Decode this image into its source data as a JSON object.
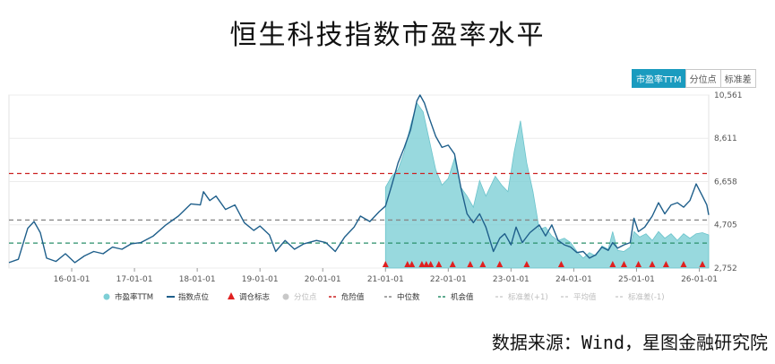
{
  "title": "恒生科技指数市盈率水平",
  "tabs": [
    {
      "label": "市盈率TTM",
      "active": true
    },
    {
      "label": "分位点",
      "active": false
    },
    {
      "label": "标准差",
      "active": false
    }
  ],
  "source": "数据来源：Wind，星图金融研究院",
  "colors": {
    "pe_fill": "#7ecfd6",
    "index_line": "#1f5f8b",
    "danger": "#cc2222",
    "median": "#888888",
    "opportunity": "#2a8f6a",
    "marker": "#e02020"
  },
  "chart_data": {
    "type": "area",
    "y_ticks": [
      "10,561",
      "8,611",
      "6,658",
      "4,705",
      "2,752"
    ],
    "ylim": [
      2752,
      10561
    ],
    "x_ticks": [
      "16-01-01",
      "17-01-01",
      "18-01-01",
      "19-01-01",
      "20-01-01",
      "21-01-01",
      "22-01-01",
      "23-01-01",
      "24-01-01",
      "25-01-01",
      "26-01-01"
    ],
    "xlim": [
      2015.0,
      2026.15
    ],
    "reference_lines": [
      {
        "name": "危险值",
        "value": 7020,
        "color": "#cc2222"
      },
      {
        "name": "中位数",
        "value": 4920,
        "color": "#888888"
      },
      {
        "name": "机会值",
        "value": 3880,
        "color": "#2a8f6a"
      }
    ],
    "series": [
      {
        "name": "指数点位",
        "kind": "line",
        "points": [
          [
            2015.0,
            3000
          ],
          [
            2015.15,
            3150
          ],
          [
            2015.3,
            4550
          ],
          [
            2015.4,
            4850
          ],
          [
            2015.5,
            4350
          ],
          [
            2015.6,
            3200
          ],
          [
            2015.75,
            3050
          ],
          [
            2015.9,
            3400
          ],
          [
            2016.05,
            3000
          ],
          [
            2016.2,
            3300
          ],
          [
            2016.35,
            3500
          ],
          [
            2016.5,
            3400
          ],
          [
            2016.65,
            3700
          ],
          [
            2016.8,
            3600
          ],
          [
            2016.95,
            3850
          ],
          [
            2017.1,
            3900
          ],
          [
            2017.3,
            4200
          ],
          [
            2017.5,
            4700
          ],
          [
            2017.7,
            5100
          ],
          [
            2017.9,
            5650
          ],
          [
            2018.05,
            5600
          ],
          [
            2018.1,
            6200
          ],
          [
            2018.2,
            5800
          ],
          [
            2018.3,
            6000
          ],
          [
            2018.45,
            5400
          ],
          [
            2018.6,
            5600
          ],
          [
            2018.75,
            4800
          ],
          [
            2018.9,
            4450
          ],
          [
            2019.0,
            4650
          ],
          [
            2019.15,
            4250
          ],
          [
            2019.25,
            3500
          ],
          [
            2019.4,
            4000
          ],
          [
            2019.55,
            3600
          ],
          [
            2019.7,
            3850
          ],
          [
            2019.9,
            4000
          ],
          [
            2020.05,
            3900
          ],
          [
            2020.2,
            3500
          ],
          [
            2020.35,
            4150
          ],
          [
            2020.5,
            4600
          ],
          [
            2020.6,
            5100
          ],
          [
            2020.75,
            4850
          ],
          [
            2020.9,
            5300
          ],
          [
            2021.0,
            5550
          ],
          [
            2021.1,
            6500
          ],
          [
            2021.2,
            7500
          ],
          [
            2021.3,
            8200
          ],
          [
            2021.4,
            9000
          ],
          [
            2021.5,
            10300
          ],
          [
            2021.55,
            10561
          ],
          [
            2021.62,
            10200
          ],
          [
            2021.7,
            9500
          ],
          [
            2021.8,
            8700
          ],
          [
            2021.9,
            8200
          ],
          [
            2022.0,
            8300
          ],
          [
            2022.1,
            7900
          ],
          [
            2022.2,
            6400
          ],
          [
            2022.3,
            5200
          ],
          [
            2022.4,
            4800
          ],
          [
            2022.5,
            5200
          ],
          [
            2022.6,
            4600
          ],
          [
            2022.72,
            3500
          ],
          [
            2022.82,
            4100
          ],
          [
            2022.9,
            4300
          ],
          [
            2023.0,
            3800
          ],
          [
            2023.08,
            4600
          ],
          [
            2023.18,
            3900
          ],
          [
            2023.3,
            4350
          ],
          [
            2023.45,
            4700
          ],
          [
            2023.55,
            4200
          ],
          [
            2023.65,
            4700
          ],
          [
            2023.75,
            4000
          ],
          [
            2023.85,
            3800
          ],
          [
            2023.95,
            3700
          ],
          [
            2024.05,
            3450
          ],
          [
            2024.15,
            3500
          ],
          [
            2024.25,
            3200
          ],
          [
            2024.35,
            3350
          ],
          [
            2024.45,
            3700
          ],
          [
            2024.55,
            3550
          ],
          [
            2024.62,
            3900
          ],
          [
            2024.7,
            3650
          ],
          [
            2024.8,
            3800
          ],
          [
            2024.9,
            3900
          ],
          [
            2024.96,
            5000
          ],
          [
            2025.03,
            4400
          ],
          [
            2025.13,
            4600
          ],
          [
            2025.25,
            5100
          ],
          [
            2025.35,
            5700
          ],
          [
            2025.45,
            5200
          ],
          [
            2025.55,
            5600
          ],
          [
            2025.65,
            5700
          ],
          [
            2025.75,
            5500
          ],
          [
            2025.85,
            5800
          ],
          [
            2025.95,
            6550
          ],
          [
            2026.05,
            6000
          ],
          [
            2026.12,
            5600
          ],
          [
            2026.15,
            5150
          ]
        ]
      },
      {
        "name": "市盈率TTM",
        "kind": "area",
        "points": [
          [
            2021.0,
            6400
          ],
          [
            2021.1,
            6900
          ],
          [
            2021.2,
            7200
          ],
          [
            2021.3,
            8000
          ],
          [
            2021.4,
            9200
          ],
          [
            2021.5,
            10200
          ],
          [
            2021.6,
            9800
          ],
          [
            2021.7,
            8500
          ],
          [
            2021.8,
            7200
          ],
          [
            2021.9,
            6500
          ],
          [
            2022.0,
            6800
          ],
          [
            2022.1,
            7700
          ],
          [
            2022.2,
            6400
          ],
          [
            2022.3,
            6000
          ],
          [
            2022.4,
            5500
          ],
          [
            2022.5,
            6700
          ],
          [
            2022.6,
            6000
          ],
          [
            2022.75,
            6900
          ],
          [
            2022.85,
            6500
          ],
          [
            2022.95,
            6200
          ],
          [
            2023.05,
            8000
          ],
          [
            2023.15,
            9400
          ],
          [
            2023.25,
            7500
          ],
          [
            2023.35,
            6200
          ],
          [
            2023.45,
            4500
          ],
          [
            2023.55,
            4600
          ],
          [
            2023.65,
            4200
          ],
          [
            2023.75,
            4000
          ],
          [
            2023.85,
            4100
          ],
          [
            2023.95,
            3900
          ],
          [
            2024.05,
            3500
          ],
          [
            2024.15,
            3200
          ],
          [
            2024.25,
            3450
          ],
          [
            2024.35,
            3300
          ],
          [
            2024.45,
            3750
          ],
          [
            2024.55,
            3600
          ],
          [
            2024.62,
            4400
          ],
          [
            2024.7,
            3550
          ],
          [
            2024.8,
            3500
          ],
          [
            2024.9,
            3700
          ],
          [
            2024.96,
            4400
          ],
          [
            2025.05,
            4150
          ],
          [
            2025.15,
            4300
          ],
          [
            2025.25,
            4000
          ],
          [
            2025.35,
            4400
          ],
          [
            2025.45,
            4100
          ],
          [
            2025.55,
            4300
          ],
          [
            2025.65,
            4000
          ],
          [
            2025.75,
            4300
          ],
          [
            2025.85,
            4100
          ],
          [
            2025.95,
            4300
          ],
          [
            2026.05,
            4350
          ],
          [
            2026.15,
            4250
          ]
        ]
      },
      {
        "name": "调仓标志",
        "kind": "markers",
        "x": [
          2021.0,
          2021.35,
          2021.42,
          2021.58,
          2021.65,
          2021.72,
          2021.85,
          2022.07,
          2022.35,
          2022.55,
          2022.82,
          2023.25,
          2023.8,
          2024.62,
          2024.8,
          2025.03,
          2025.25,
          2025.47,
          2025.75,
          2026.05
        ]
      }
    ],
    "legend": {
      "position": "bottom",
      "items": [
        {
          "label": "市盈率TTM",
          "symbol": "circle",
          "color": "#7ecfd6"
        },
        {
          "label": "指数点位",
          "symbol": "line",
          "color": "#1f5f8b"
        },
        {
          "label": "调仓标志",
          "symbol": "triangle",
          "color": "#e02020"
        },
        {
          "label": "分位点",
          "symbol": "circle",
          "color": "#c8c8c8"
        },
        {
          "label": "危险值",
          "symbol": "dash",
          "color": "#cc2222"
        },
        {
          "label": "中位数",
          "symbol": "dash",
          "color": "#888888"
        },
        {
          "label": "机会值",
          "symbol": "dash",
          "color": "#2a8f6a"
        },
        {
          "label": "标准差(+1)",
          "symbol": "dash",
          "color": "#cfcfcf"
        },
        {
          "label": "平均值",
          "symbol": "dash",
          "color": "#cfcfcf"
        },
        {
          "label": "标准差(-1)",
          "symbol": "dash",
          "color": "#cfcfcf"
        }
      ]
    }
  }
}
